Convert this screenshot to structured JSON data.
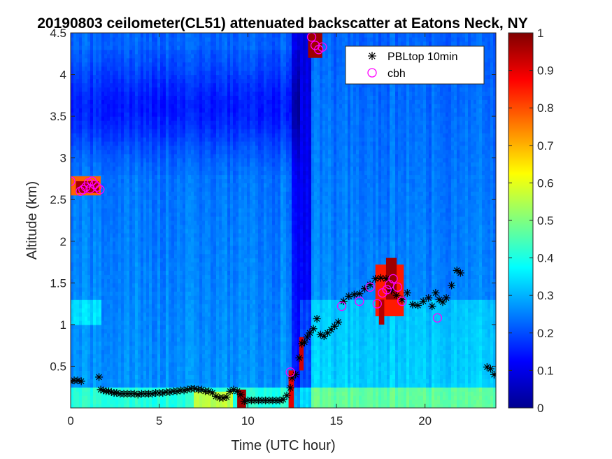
{
  "chart_data": {
    "type": "heatmap",
    "title": "20190803 ceilometer(CL51) attenuated backscatter at Eatons Neck, NY",
    "xlabel": "Time (UTC hour)",
    "ylabel": "Altitude (km)",
    "xlim": [
      0,
      24
    ],
    "ylim": [
      0,
      4.5
    ],
    "xticks": [
      0,
      5,
      10,
      15,
      20
    ],
    "xtick_labels": [
      "0",
      "5",
      "10",
      "15",
      "20"
    ],
    "yticks": [
      0.5,
      1,
      1.5,
      2,
      2.5,
      3,
      3.5,
      4,
      4.5
    ],
    "ytick_labels": [
      "0.5",
      "1",
      "1.5",
      "2",
      "2.5",
      "3",
      "3.5",
      "4",
      "4.5"
    ],
    "colorbar": {
      "colormap": "jet",
      "range": [
        0,
        1
      ],
      "ticks": [
        0,
        0.1,
        0.2,
        0.3,
        0.4,
        0.5,
        0.6,
        0.7,
        0.8,
        0.9,
        1
      ],
      "tick_labels": [
        "0",
        "0.1",
        "0.2",
        "0.3",
        "0.4",
        "0.5",
        "0.6",
        "0.7",
        "0.8",
        "0.9",
        "1"
      ]
    },
    "legend": {
      "position": "top-right",
      "entries": [
        {
          "label": "PBLtop 10min",
          "marker": "asterisk",
          "color": "#000000"
        },
        {
          "label": "cbh",
          "marker": "circle",
          "color": "#ff00ff"
        }
      ]
    },
    "series": [
      {
        "name": "PBLtop 10min",
        "x": [
          0.0,
          0.2,
          0.4,
          0.6,
          1.6,
          1.7,
          1.85,
          2.0,
          2.15,
          2.3,
          2.45,
          2.6,
          2.8,
          3.0,
          3.2,
          3.4,
          3.6,
          3.8,
          4.0,
          4.2,
          4.4,
          4.6,
          4.8,
          5.0,
          5.2,
          5.4,
          5.6,
          5.8,
          6.0,
          6.2,
          6.4,
          6.6,
          6.8,
          7.0,
          7.2,
          7.4,
          7.6,
          7.8,
          8.0,
          8.2,
          8.4,
          8.6,
          8.8,
          9.0,
          9.2,
          9.4,
          9.6,
          9.8,
          10.0,
          10.2,
          10.4,
          10.6,
          10.8,
          11.0,
          11.2,
          11.4,
          11.6,
          11.8,
          12.0,
          12.2,
          12.4,
          12.5,
          12.7,
          12.9,
          13.05,
          13.2,
          13.35,
          13.5,
          13.7,
          13.9,
          14.1,
          14.3,
          14.5,
          14.7,
          14.9,
          15.1,
          15.4,
          15.7,
          16.0,
          16.3,
          16.6,
          16.9,
          17.2,
          17.5,
          17.8,
          18.1,
          18.4,
          18.7,
          19.0,
          19.3,
          19.6,
          19.9,
          20.2,
          20.4,
          20.6,
          20.8,
          21.0,
          21.2,
          21.5,
          21.8,
          22.0,
          23.5,
          23.7,
          23.9
        ],
        "values": [
          0.32,
          0.33,
          0.33,
          0.32,
          0.37,
          0.22,
          0.21,
          0.2,
          0.2,
          0.19,
          0.18,
          0.18,
          0.17,
          0.17,
          0.17,
          0.17,
          0.17,
          0.16,
          0.17,
          0.17,
          0.17,
          0.17,
          0.18,
          0.18,
          0.18,
          0.19,
          0.19,
          0.2,
          0.2,
          0.21,
          0.21,
          0.22,
          0.23,
          0.23,
          0.22,
          0.22,
          0.2,
          0.2,
          0.18,
          0.14,
          0.12,
          0.12,
          0.13,
          0.2,
          0.22,
          0.2,
          0.16,
          0.08,
          0.09,
          0.09,
          0.09,
          0.09,
          0.09,
          0.09,
          0.09,
          0.09,
          0.09,
          0.09,
          0.1,
          0.15,
          0.24,
          0.36,
          0.4,
          0.6,
          0.77,
          0.79,
          0.85,
          0.9,
          0.95,
          1.07,
          0.88,
          0.86,
          0.9,
          0.94,
          0.98,
          1.03,
          1.28,
          1.34,
          1.36,
          1.37,
          1.43,
          1.48,
          1.55,
          1.56,
          1.55,
          1.41,
          1.35,
          1.3,
          1.38,
          1.24,
          1.23,
          1.28,
          1.32,
          1.22,
          1.38,
          1.3,
          1.27,
          1.32,
          1.47,
          1.65,
          1.62,
          0.49,
          0.47,
          0.4
        ]
      },
      {
        "name": "cbh",
        "x": [
          0.0,
          0.55,
          0.7,
          0.85,
          1.0,
          1.1,
          1.2,
          1.35,
          1.5,
          1.65,
          12.4,
          13.6,
          13.8,
          14.0,
          14.2,
          15.3,
          16.3,
          16.9,
          17.3,
          17.6,
          17.85,
          18.0,
          18.2,
          18.45,
          18.7,
          20.7
        ],
        "values": [
          2.72,
          2.6,
          2.62,
          2.65,
          2.7,
          2.63,
          2.72,
          2.68,
          2.65,
          2.62,
          0.43,
          4.45,
          4.35,
          4.3,
          4.33,
          1.22,
          1.28,
          1.45,
          1.25,
          1.38,
          1.42,
          1.48,
          1.55,
          1.45,
          1.28,
          1.08
        ]
      }
    ]
  }
}
